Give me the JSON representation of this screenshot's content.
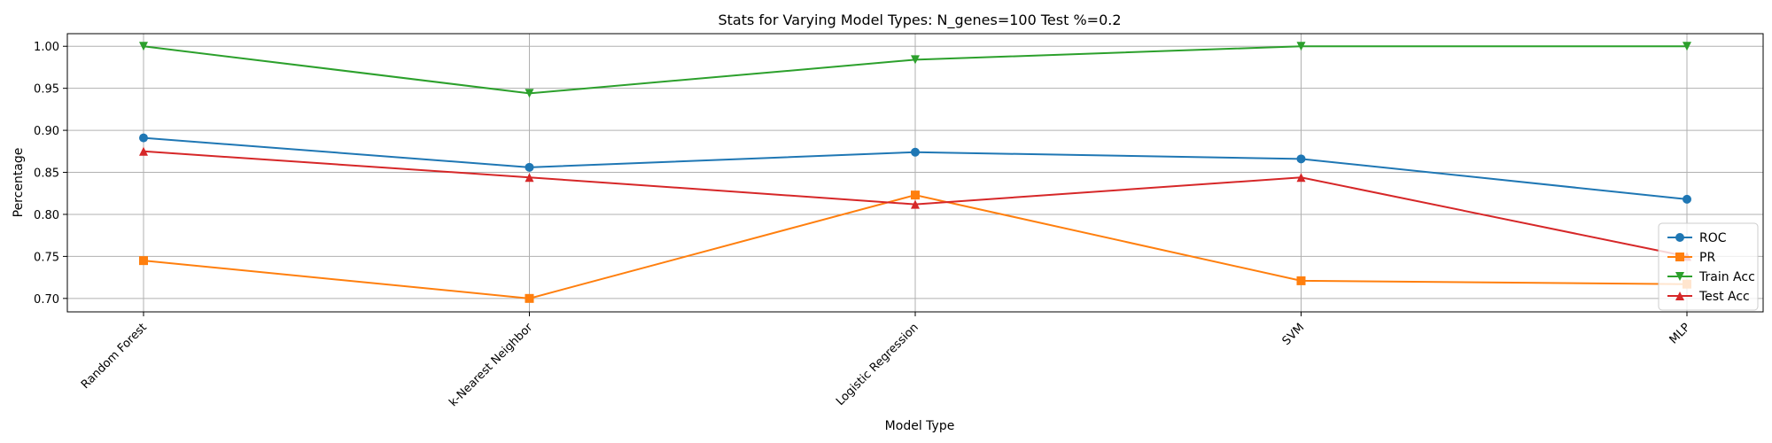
{
  "chart_data": {
    "type": "line",
    "title": "Stats for Varying Model Types: N_genes=100 Test %=0.2",
    "xlabel": "Model Type",
    "ylabel": "Percentage",
    "categories": [
      "Random Forest",
      "k-Nearest Neighbor",
      "Logistic Regression",
      "SVM",
      "MLP"
    ],
    "ylim": [
      0.684,
      1.015
    ],
    "yticks": [
      "0.70",
      "0.75",
      "0.80",
      "0.85",
      "0.90",
      "0.95",
      "1.00"
    ],
    "grid": true,
    "legend_position": "lower-right",
    "series": [
      {
        "name": "ROC",
        "color": "#1f77b4",
        "marker": "circle",
        "values": [
          0.891,
          0.856,
          0.874,
          0.866,
          0.818
        ]
      },
      {
        "name": "PR",
        "color": "#ff7f0e",
        "marker": "square",
        "values": [
          0.745,
          0.7,
          0.823,
          0.721,
          0.717
        ]
      },
      {
        "name": "Train Acc",
        "color": "#2ca02c",
        "marker": "triangle-down",
        "values": [
          1.0,
          0.944,
          0.984,
          1.0,
          1.0
        ]
      },
      {
        "name": "Test Acc",
        "color": "#d62728",
        "marker": "triangle-up",
        "values": [
          0.875,
          0.844,
          0.812,
          0.844,
          0.75
        ]
      }
    ]
  }
}
